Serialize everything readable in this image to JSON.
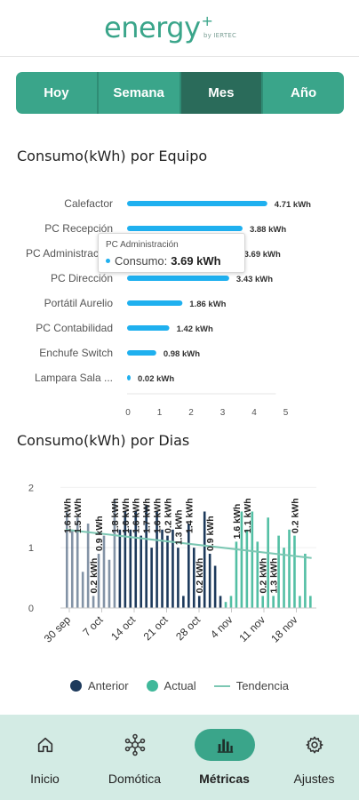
{
  "header": {
    "logo_text": "energy",
    "logo_plus": "+",
    "logo_by": "by IERTEC"
  },
  "tabs": [
    {
      "label": "Hoy",
      "active": false
    },
    {
      "label": "Semana",
      "active": false
    },
    {
      "label": "Mes",
      "active": true
    },
    {
      "label": "Año",
      "active": false
    }
  ],
  "equipment_section": {
    "title": "Consumo(kWh) por Equipo"
  },
  "tooltip": {
    "title": "PC Administración",
    "label": "Consumo:",
    "value": "3.69 kWh"
  },
  "days_section": {
    "title": "Consumo(kWh) por Dias"
  },
  "colors": {
    "accent": "#3aa58a",
    "accent_dark": "#2a6b5a",
    "bar_blue": "#1fb0ef",
    "anterior": "#1d3a5c",
    "actual": "#40b89a",
    "trend": "#7cc7b3",
    "nav_bg": "#d3ebe4"
  },
  "chart_data": [
    {
      "type": "bar",
      "orientation": "horizontal",
      "title": "Consumo(kWh) por Equipo",
      "categories": [
        "Calefactor",
        "PC Recepción",
        "PC Administración",
        "PC Dirección",
        "Portátil Aurelio",
        "PC Contabilidad",
        "Enchufe Switch",
        "Lampara Sala ..."
      ],
      "values": [
        4.71,
        3.88,
        3.69,
        3.43,
        1.86,
        1.42,
        0.98,
        0.02
      ],
      "value_labels": [
        "4.71 kWh",
        "3.88 kWh",
        "3.69 kWh",
        "3.43 kWh",
        "1.86 kWh",
        "1.42 kWh",
        "0.98 kWh",
        "0.02 kWh"
      ],
      "x_ticks": [
        "0",
        "1",
        "2",
        "3",
        "4",
        "5"
      ],
      "xlim": [
        0,
        5
      ],
      "grid": false
    },
    {
      "type": "bar",
      "title": "Consumo(kWh) por Dias",
      "x_tick_labels": [
        "30 sep",
        "7 oct",
        "14 oct",
        "21 oct",
        "28 oct",
        "4 nov",
        "11 nov",
        "18 nov"
      ],
      "y_ticks": [
        "0",
        "1",
        "2"
      ],
      "ylim": [
        0,
        2.3
      ],
      "legend": {
        "position": "bottom",
        "entries": [
          "Anterior",
          "Actual",
          "Tendencia"
        ]
      },
      "series": [
        {
          "name": "Anterior",
          "values": [
            1.6,
            1.3,
            1.5,
            0.6,
            1.4,
            0.2,
            0.9,
            1.2,
            0.8,
            1.8,
            1.3,
            1.6,
            1.3,
            1.6,
            1.2,
            1.7,
            1.0,
            1.6,
            1.3,
            1.2,
            1.3,
            1.0,
            0.2,
            1.4,
            1.0,
            0.2,
            1.6,
            0.9,
            0.7,
            0.2
          ]
        },
        {
          "name": "Actual",
          "values": [
            0.1,
            0.2,
            1.1,
            1.6,
            1.3,
            1.6,
            1.1,
            0.2,
            1.5,
            0.2,
            1.2,
            1.0,
            1.3,
            1.2,
            0.2,
            0.9,
            0.2
          ]
        },
        {
          "name": "Tendencia",
          "values": [
            1.3,
            0.83
          ]
        }
      ],
      "data_labels": [
        "1.6 kWh",
        "1.5 kWh",
        "0.2 kWh",
        "0.9 kWh",
        "1.8 kWh",
        "1.6 kWh",
        "1.6 kWh",
        "1.7 kWh",
        "1.6 kWh",
        "0.2 kWh",
        "1.3 kWh",
        "1.4 kWh",
        "0.2 kWh",
        "0.9 kWh",
        "1.6 kWh",
        "1.1 kWh",
        "0.2 kWh",
        "1.3 kWh",
        "0.2 kWh"
      ]
    }
  ],
  "nav": [
    {
      "label": "Inicio",
      "icon": "home-icon",
      "active": false
    },
    {
      "label": "Domótica",
      "icon": "network-icon",
      "active": false
    },
    {
      "label": "Métricas",
      "icon": "bar-chart-icon",
      "active": true
    },
    {
      "label": "Ajustes",
      "icon": "gear-icon",
      "active": false
    }
  ]
}
